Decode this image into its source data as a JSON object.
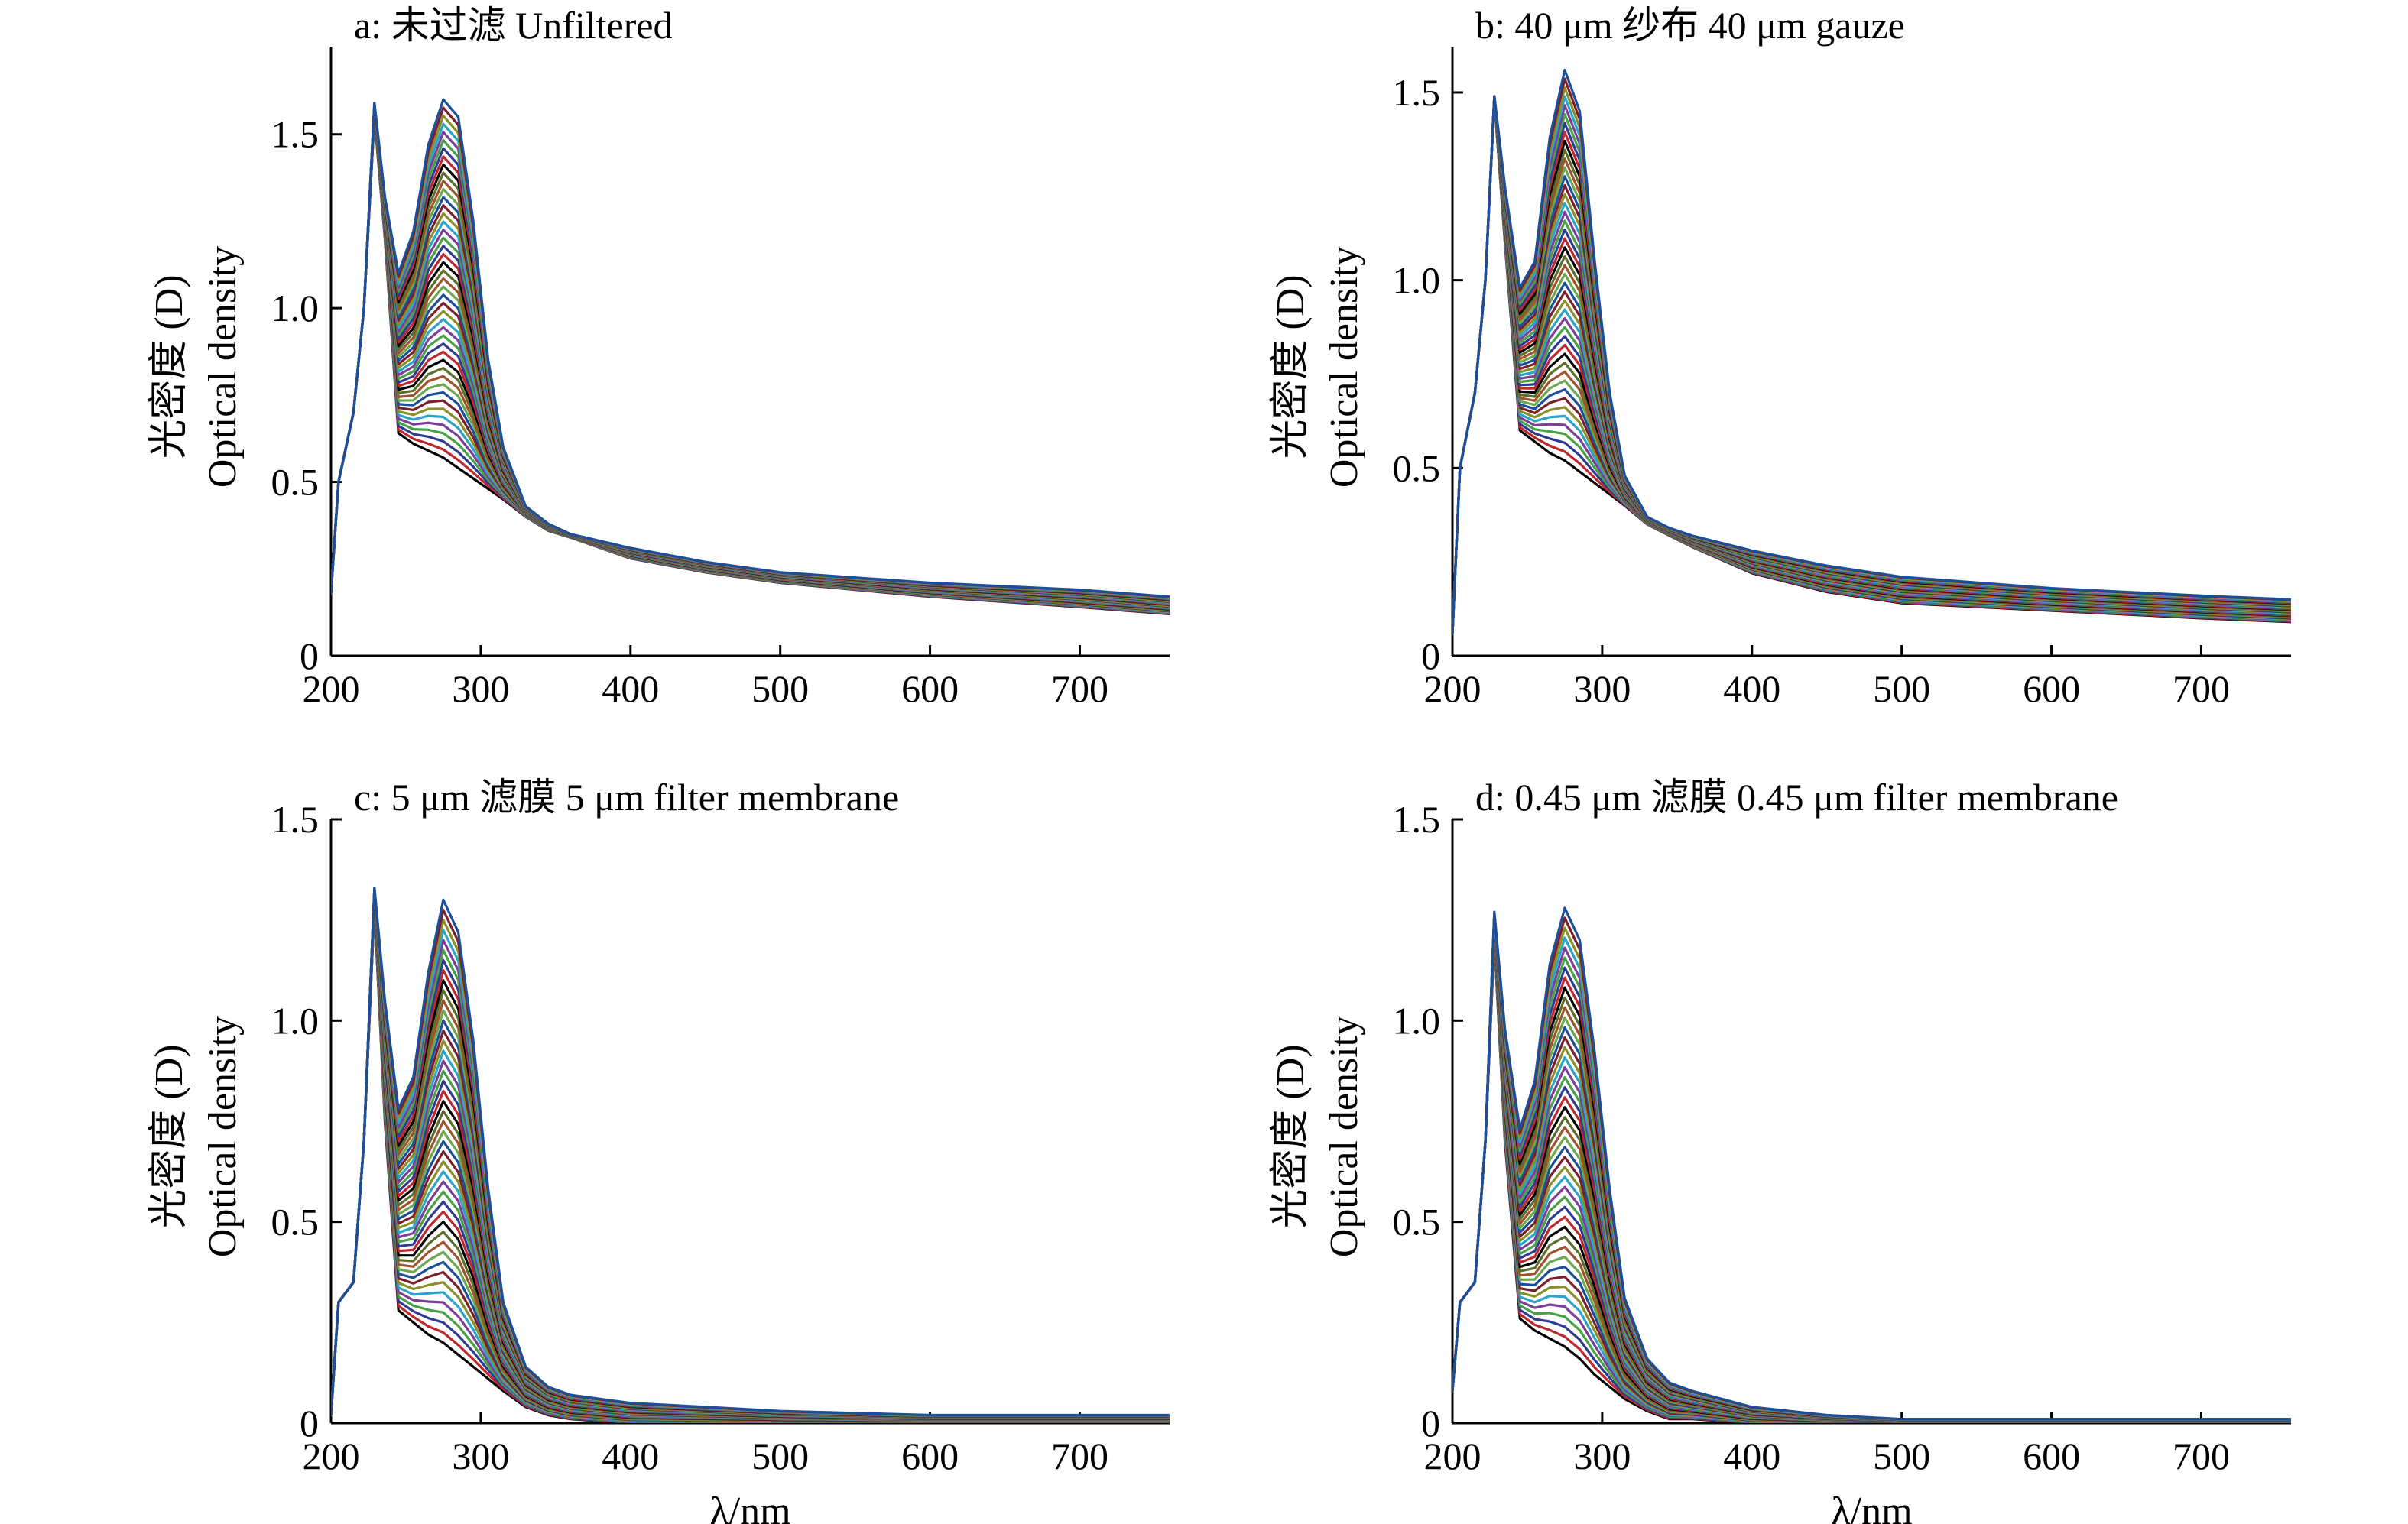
{
  "palette": [
    "#000000",
    "#c0272d",
    "#2f3a93",
    "#49a146",
    "#7b3f98",
    "#2aa4c9",
    "#8a8f2a",
    "#7a1f2b",
    "#1b4f9a",
    "#6aa84f",
    "#a0522d",
    "#5b6e2a"
  ],
  "chart_data": [
    {
      "type": "line",
      "title": "a: 未过滤 Unfiltered",
      "xlabel": "",
      "ylabel_cn": "光密度 (D)",
      "ylabel_en": "Optical density",
      "xlim": [
        200,
        760
      ],
      "ylim": [
        0,
        1.75
      ],
      "xticks": [
        "200",
        "300",
        "400",
        "500",
        "600",
        "700"
      ],
      "yticks": [
        "0",
        "0.5",
        "1.0",
        "1.5"
      ],
      "ytick_values": [
        0,
        0.5,
        1.0,
        1.5
      ],
      "series_count": 45,
      "x": [
        200,
        205,
        215,
        222,
        229,
        236,
        245,
        255,
        265,
        275,
        285,
        295,
        305,
        315,
        330,
        345,
        360,
        400,
        450,
        500,
        600,
        700,
        760
      ],
      "curve_envelope": {
        "bottom_curve": [
          0.18,
          0.5,
          0.7,
          1.0,
          1.55,
          1.2,
          0.64,
          0.61,
          0.59,
          0.57,
          0.54,
          0.51,
          0.48,
          0.45,
          0.4,
          0.36,
          0.34,
          0.28,
          0.24,
          0.21,
          0.17,
          0.14,
          0.12
        ],
        "top_curve": [
          0.18,
          0.5,
          0.7,
          1.0,
          1.59,
          1.32,
          1.1,
          1.22,
          1.47,
          1.6,
          1.55,
          1.25,
          0.85,
          0.6,
          0.43,
          0.38,
          0.35,
          0.31,
          0.27,
          0.24,
          0.21,
          0.19,
          0.17
        ]
      }
    },
    {
      "type": "line",
      "title": "b: 40 μm 纱布 40 μm gauze",
      "xlabel": "",
      "ylabel_cn": "光密度 (D)",
      "ylabel_en": "Optical density",
      "xlim": [
        200,
        760
      ],
      "ylim": [
        0,
        1.62
      ],
      "xticks": [
        "200",
        "300",
        "400",
        "500",
        "600",
        "700"
      ],
      "yticks": [
        "0",
        "0.5",
        "1.0",
        "1.5"
      ],
      "ytick_values": [
        0,
        0.5,
        1.0,
        1.5
      ],
      "series_count": 45,
      "x": [
        200,
        205,
        215,
        222,
        228,
        235,
        245,
        255,
        265,
        275,
        285,
        295,
        305,
        315,
        330,
        345,
        360,
        400,
        450,
        500,
        600,
        700,
        760
      ],
      "curve_envelope": {
        "bottom_curve": [
          0.06,
          0.5,
          0.7,
          1.0,
          1.48,
          1.1,
          0.6,
          0.57,
          0.54,
          0.52,
          0.49,
          0.46,
          0.43,
          0.4,
          0.35,
          0.32,
          0.29,
          0.22,
          0.17,
          0.14,
          0.12,
          0.1,
          0.09
        ],
        "top_curve": [
          0.06,
          0.5,
          0.7,
          1.0,
          1.49,
          1.25,
          0.98,
          1.05,
          1.38,
          1.56,
          1.45,
          1.05,
          0.7,
          0.48,
          0.37,
          0.34,
          0.32,
          0.28,
          0.24,
          0.21,
          0.18,
          0.16,
          0.15
        ]
      }
    },
    {
      "type": "line",
      "title": "c: 5 μm 滤膜 5 μm filter membrane",
      "xlabel": "λ/nm",
      "ylabel_cn": "光密度 (D)",
      "ylabel_en": "Optical density",
      "xlim": [
        200,
        760
      ],
      "ylim": [
        0,
        1.5
      ],
      "xticks": [
        "200",
        "300",
        "400",
        "500",
        "600",
        "700"
      ],
      "yticks": [
        "0",
        "0.5",
        "1.0",
        "1.5"
      ],
      "ytick_values": [
        0,
        0.5,
        1.0,
        1.5
      ],
      "series_count": 45,
      "x": [
        200,
        205,
        215,
        222,
        229,
        236,
        245,
        255,
        265,
        275,
        285,
        295,
        305,
        315,
        330,
        345,
        360,
        400,
        450,
        500,
        600,
        700,
        760
      ],
      "curve_envelope": {
        "bottom_curve": [
          0.02,
          0.3,
          0.35,
          0.7,
          1.28,
          0.75,
          0.28,
          0.25,
          0.22,
          0.2,
          0.17,
          0.14,
          0.11,
          0.08,
          0.04,
          0.02,
          0.01,
          0.0,
          0.0,
          0.0,
          0.0,
          0.0,
          0.0
        ],
        "top_curve": [
          0.02,
          0.3,
          0.35,
          0.7,
          1.33,
          1.05,
          0.78,
          0.86,
          1.12,
          1.3,
          1.22,
          0.95,
          0.58,
          0.3,
          0.14,
          0.09,
          0.07,
          0.05,
          0.04,
          0.03,
          0.02,
          0.02,
          0.02
        ]
      }
    },
    {
      "type": "line",
      "title": "d: 0.45 μm 滤膜 0.45 μm filter membrane",
      "xlabel": "λ/nm",
      "ylabel_cn": "光密度 (D)",
      "ylabel_en": "Optical density",
      "xlim": [
        200,
        760
      ],
      "ylim": [
        0,
        1.5
      ],
      "xticks": [
        "200",
        "300",
        "400",
        "500",
        "600",
        "700"
      ],
      "yticks": [
        "0",
        "0.5",
        "1.0",
        "1.5"
      ],
      "ytick_values": [
        0,
        0.5,
        1.0,
        1.5
      ],
      "series_count": 45,
      "x": [
        200,
        205,
        215,
        222,
        228,
        235,
        245,
        255,
        265,
        275,
        285,
        295,
        305,
        315,
        330,
        345,
        360,
        400,
        450,
        500,
        600,
        700,
        760
      ],
      "curve_envelope": {
        "bottom_curve": [
          0.08,
          0.3,
          0.35,
          0.7,
          1.2,
          0.7,
          0.26,
          0.23,
          0.21,
          0.19,
          0.16,
          0.12,
          0.09,
          0.06,
          0.03,
          0.01,
          0.01,
          0.0,
          0.0,
          0.0,
          0.0,
          0.0,
          0.0
        ],
        "top_curve": [
          0.08,
          0.3,
          0.35,
          0.7,
          1.27,
          0.98,
          0.73,
          0.85,
          1.14,
          1.28,
          1.2,
          0.92,
          0.58,
          0.31,
          0.16,
          0.1,
          0.08,
          0.04,
          0.02,
          0.01,
          0.01,
          0.01,
          0.01
        ]
      }
    }
  ]
}
